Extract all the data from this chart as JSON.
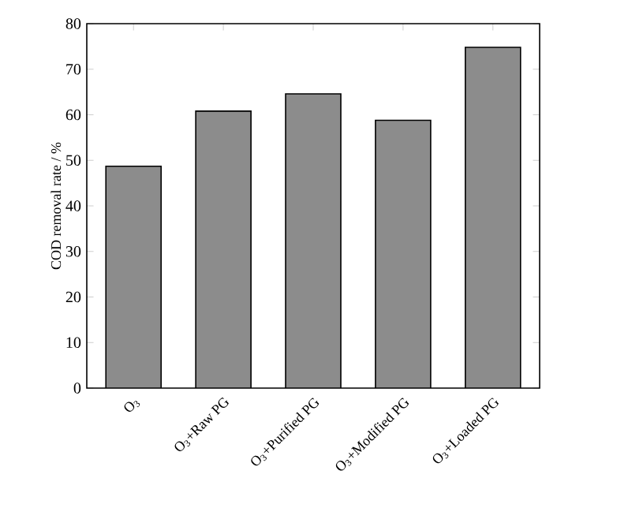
{
  "chart_data": {
    "type": "bar",
    "ylabel": "COD removal rate / %",
    "categories": [
      "O$_{3}$",
      "O$_{3}$+Raw PG",
      "O$_{3}$+Purified PG",
      "O$_{3}$+Modified PG",
      "O$_{3}$+Loaded PG"
    ],
    "values": [
      48.7,
      60.8,
      64.6,
      58.8,
      74.8
    ],
    "color": "#8c8c8c",
    "ylim": [
      0,
      80
    ],
    "yticks": [
      0,
      10,
      20,
      30,
      40,
      50,
      60,
      70,
      80
    ]
  }
}
